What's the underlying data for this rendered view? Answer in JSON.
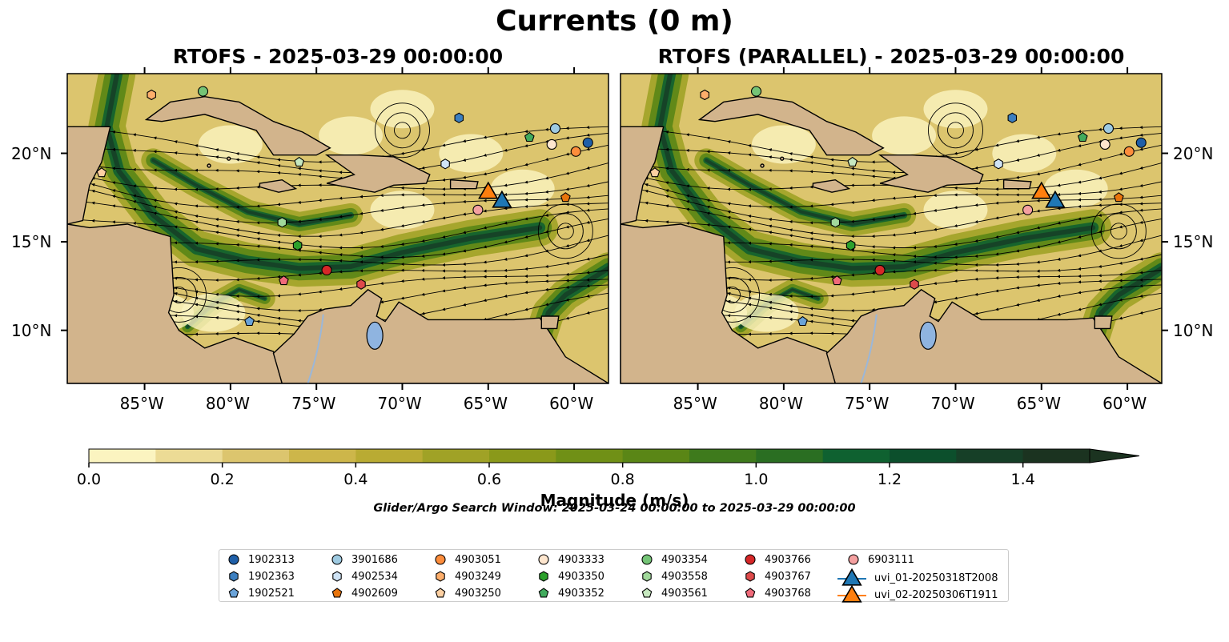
{
  "title": "Currents (0 m)",
  "panels": [
    {
      "title": "RTOFS - 2025-03-29 00:00:00"
    },
    {
      "title": "RTOFS (PARALLEL) - 2025-03-29 00:00:00"
    }
  ],
  "axes": {
    "x_ticks": [
      "85°W",
      "80°W",
      "75°W",
      "70°W",
      "65°W",
      "60°W"
    ],
    "y_ticks": [
      "20°N",
      "15°N",
      "10°N"
    ]
  },
  "colorbar": {
    "label": "Magnitude (m/s)",
    "ticks": [
      "0.0",
      "0.2",
      "0.4",
      "0.6",
      "0.8",
      "1.0",
      "1.2",
      "1.4"
    ],
    "min": 0.0,
    "max": 1.5,
    "step": 0.1,
    "extend": "max",
    "colors": [
      "#fbf4c0",
      "#ecdb95",
      "#dcc56e",
      "#cdb64a",
      "#b9ab33",
      "#a0a226",
      "#8a991a",
      "#709016",
      "#5a8616",
      "#3e7a1c",
      "#2a6e22",
      "#0f6130",
      "#0c4f2c",
      "#163f27",
      "#1b3320"
    ]
  },
  "search_window": "Glider/Argo Search Window: 2025-03-24 00:00:00 to 2025-03-29 00:00:00",
  "chart_data": {
    "type": "map",
    "variable": "surface current magnitude (m/s) with streamlines",
    "lon_range": [
      -89.5,
      -58
    ],
    "lat_range": [
      7,
      24.5
    ],
    "platforms": [
      {
        "id": "1902313",
        "marker": "circle",
        "color": "#1f5fa8",
        "lon": -59.2,
        "lat": 20.6,
        "lon_par": -59.2,
        "lat_par": 20.6
      },
      {
        "id": "1902363",
        "marker": "hexagon",
        "color": "#3c7fc0",
        "lon": -66.7,
        "lat": 22.0,
        "lon_par": -66.7,
        "lat_par": 22.0
      },
      {
        "id": "1902521",
        "marker": "pentagon",
        "color": "#6aa3d8",
        "lon": -78.9,
        "lat": 10.5,
        "lon_par": -78.9,
        "lat_par": 10.5
      },
      {
        "id": "3901686",
        "marker": "circle",
        "color": "#9ecae1",
        "lon": -61.1,
        "lat": 21.4,
        "lon_par": -61.1,
        "lat_par": 21.4
      },
      {
        "id": "4902534",
        "marker": "hexagon",
        "color": "#cfe3f5",
        "lon": -67.5,
        "lat": 19.4,
        "lon_par": -67.5,
        "lat_par": 19.4
      },
      {
        "id": "4902609",
        "marker": "pentagon",
        "color": "#e8740c",
        "lon": -60.5,
        "lat": 17.5,
        "lon_par": -60.5,
        "lat_par": 17.5
      },
      {
        "id": "4903051",
        "marker": "circle",
        "color": "#fd8d3c",
        "lon": -59.9,
        "lat": 20.1,
        "lon_par": -59.9,
        "lat_par": 20.1
      },
      {
        "id": "4903249",
        "marker": "hexagon",
        "color": "#fdae6b",
        "lon": -84.6,
        "lat": 23.3,
        "lon_par": -84.6,
        "lat_par": 23.3
      },
      {
        "id": "4903250",
        "marker": "pentagon",
        "color": "#fdd0a2",
        "lon": -87.5,
        "lat": 18.9,
        "lon_par": -87.5,
        "lat_par": 18.9
      },
      {
        "id": "4903333",
        "marker": "circle",
        "color": "#fee6ce",
        "lon": -61.3,
        "lat": 20.5,
        "lon_par": -61.3,
        "lat_par": 20.5
      },
      {
        "id": "4903350",
        "marker": "hexagon",
        "color": "#2ca02c",
        "lon": -76.1,
        "lat": 14.8,
        "lon_par": -76.1,
        "lat_par": 14.8
      },
      {
        "id": "4903352",
        "marker": "pentagon",
        "color": "#41ab5d",
        "lon": -62.6,
        "lat": 20.9,
        "lon_par": -62.6,
        "lat_par": 20.9
      },
      {
        "id": "4903354",
        "marker": "circle",
        "color": "#74c476",
        "lon": -81.6,
        "lat": 23.5,
        "lon_par": -81.6,
        "lat_par": 23.5
      },
      {
        "id": "4903558",
        "marker": "hexagon",
        "color": "#a1d99b",
        "lon": -77.0,
        "lat": 16.1,
        "lon_par": -77.0,
        "lat_par": 16.1
      },
      {
        "id": "4903561",
        "marker": "pentagon",
        "color": "#c7e9c0",
        "lon": -76.0,
        "lat": 19.5,
        "lon_par": -76.0,
        "lat_par": 19.5
      },
      {
        "id": "4903766",
        "marker": "circle",
        "color": "#d62728",
        "lon": -74.4,
        "lat": 13.4,
        "lon_par": -74.4,
        "lat_par": 13.4
      },
      {
        "id": "4903767",
        "marker": "hexagon",
        "color": "#de4a4b",
        "lon": -72.4,
        "lat": 12.6,
        "lon_par": -72.4,
        "lat_par": 12.6
      },
      {
        "id": "4903768",
        "marker": "pentagon",
        "color": "#f06a7a",
        "lon": -76.9,
        "lat": 12.8,
        "lon_par": -76.9,
        "lat_par": 12.8
      },
      {
        "id": "6903111",
        "marker": "circle",
        "color": "#f4a0a0",
        "lon": -65.6,
        "lat": 16.8,
        "lon_par": -65.8,
        "lat_par": 16.8
      },
      {
        "id": "uvi_01-20250318T2008",
        "marker": "triangle",
        "color": "#1f77b4",
        "lon": -64.2,
        "lat": 17.4,
        "lon_par": -64.2,
        "lat_par": 17.4
      },
      {
        "id": "uvi_02-20250306T1911",
        "marker": "triangle",
        "color": "#ff7f0e",
        "lon": -65.0,
        "lat": 17.9,
        "lon_par": -65.0,
        "lat_par": 17.9
      }
    ]
  }
}
